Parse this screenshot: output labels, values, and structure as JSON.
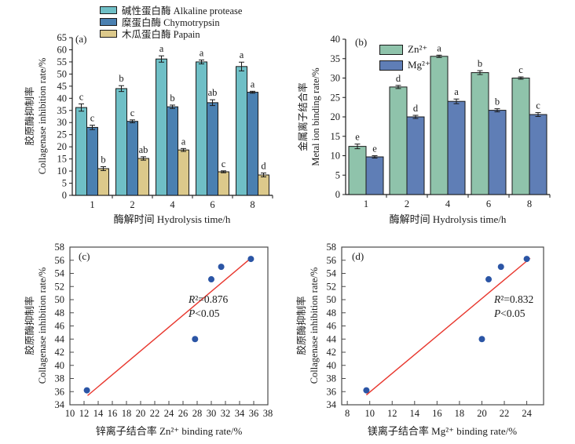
{
  "figure": {
    "panels": {
      "a": {
        "tag": "(a)",
        "ylabel_cn": "胶原酶抑制率",
        "ylabel_en": "Collagenase inhibition rate/%",
        "xlabel": "酶解时间 Hydrolysis time/h"
      },
      "b": {
        "tag": "(b)",
        "ylabel_cn": "金属离子结合率",
        "ylabel_en": "Metal ion binding rate/%",
        "xlabel": "酶解时间 Hydrolysis time/h"
      },
      "c": {
        "tag": "(c)",
        "ylabel_cn": "胶原酶抑制率",
        "ylabel_en": "Collagenase inhibition rate/%",
        "xlabel": "锌离子结合率 Zn²⁺ binding rate/%"
      },
      "d": {
        "tag": "(d)",
        "ylabel_cn": "胶原酶抑制率",
        "ylabel_en": "Collagenase inhibition rate/%",
        "xlabel": "镁离子结合率 Mg²⁺ binding rate/%"
      }
    },
    "colors": {
      "axis": "#1a1a1a",
      "scatter_box": "#4a4a4a"
    }
  },
  "chart_data": [
    {
      "type": "bar",
      "panel": "a",
      "title": "",
      "xlabel": "酶解时间 Hydrolysis time/h",
      "ylabel": "胶原酶抑制率 Collagenase inhibition rate/%",
      "categories": [
        "1",
        "2",
        "4",
        "6",
        "8"
      ],
      "ylim": [
        0,
        65
      ],
      "ytick_step": 5,
      "legend_position": "top-left-above",
      "series": [
        {
          "name": "碱性蛋白酶 Alkaline protease",
          "color": "#6fbfc6",
          "values": [
            36.2,
            44.0,
            56.2,
            55.0,
            53.1
          ],
          "errors": [
            1.5,
            1.2,
            1.3,
            0.8,
            1.8
          ],
          "sig_letters": [
            "c",
            "b",
            "a",
            "a",
            "a"
          ]
        },
        {
          "name": "糜蛋白酶 Chymotrypsin",
          "color": "#4a80b1",
          "values": [
            28.0,
            30.5,
            36.5,
            38.2,
            42.5
          ],
          "errors": [
            0.9,
            0.6,
            0.7,
            1.2,
            0.4
          ],
          "sig_letters": [
            "c",
            "c",
            "b",
            "ab",
            "a"
          ]
        },
        {
          "name": "木瓜蛋白酶 Papain",
          "color": "#dcc98b",
          "values": [
            11.0,
            15.2,
            18.7,
            9.7,
            8.4
          ],
          "errors": [
            0.8,
            0.7,
            0.6,
            0.4,
            0.8
          ],
          "sig_letters": [
            "b",
            "ab",
            "a",
            "c",
            "d"
          ]
        }
      ]
    },
    {
      "type": "bar",
      "panel": "b",
      "title": "",
      "xlabel": "酶解时间 Hydrolysis time/h",
      "ylabel": "金属离子结合率 Metal ion binding rate/%",
      "categories": [
        "1",
        "2",
        "4",
        "6",
        "8"
      ],
      "ylim": [
        0,
        40
      ],
      "ytick_step": 5,
      "legend_position": "inside-top-left",
      "series": [
        {
          "name": "Zn²⁺",
          "color": "#8fc3ab",
          "values": [
            12.4,
            27.7,
            35.6,
            31.4,
            30.0
          ],
          "errors": [
            0.6,
            0.4,
            0.3,
            0.5,
            0.3
          ],
          "sig_letters": [
            "e",
            "d",
            "a",
            "b",
            "c"
          ]
        },
        {
          "name": "Mg²⁺",
          "color": "#5f7eb6",
          "values": [
            9.7,
            20.0,
            24.0,
            21.7,
            20.6
          ],
          "errors": [
            0.3,
            0.4,
            0.6,
            0.4,
            0.5
          ],
          "sig_letters": [
            "e",
            "d",
            "a",
            "b",
            "c"
          ]
        }
      ]
    },
    {
      "type": "scatter",
      "panel": "c",
      "title": "",
      "xlabel": "锌离子结合率 Zn²⁺ binding rate/%",
      "ylabel": "胶原酶抑制率 Collagenase inhibition rate/%",
      "xlim": [
        10,
        38
      ],
      "xticks": {
        "min": 10,
        "max": 38,
        "step": 2
      },
      "ylim": [
        34,
        58
      ],
      "yticks": {
        "min": 34,
        "max": 58,
        "step": 2
      },
      "points": [
        [
          12.4,
          36.2
        ],
        [
          27.7,
          44.0
        ],
        [
          30.0,
          53.1
        ],
        [
          31.4,
          55.0
        ],
        [
          35.6,
          56.2
        ]
      ],
      "point_color": "#2b55a5",
      "fit_line": {
        "from": [
          12.5,
          35.4
        ],
        "to": [
          35.8,
          56.5
        ],
        "color": "#e8372e"
      },
      "annotation": [
        "R²=0.876",
        "P<0.05"
      ]
    },
    {
      "type": "scatter",
      "panel": "d",
      "title": "",
      "xlabel": "镁离子结合率 Mg²⁺ binding rate/%",
      "ylabel": "胶原酶抑制率 Collagenase inhibition rate/%",
      "xlim": [
        7.5,
        25.5
      ],
      "xticks": {
        "min": 8,
        "max": 24,
        "step": 2
      },
      "ylim": [
        34,
        58
      ],
      "yticks": {
        "min": 34,
        "max": 58,
        "step": 2
      },
      "points": [
        [
          9.7,
          36.2
        ],
        [
          20.0,
          44.0
        ],
        [
          20.6,
          53.1
        ],
        [
          21.7,
          55.0
        ],
        [
          24.0,
          56.2
        ]
      ],
      "point_color": "#2b55a5",
      "fit_line": {
        "from": [
          9.7,
          35.5
        ],
        "to": [
          24.3,
          56.3
        ],
        "color": "#e8372e"
      },
      "annotation": [
        "R²=0.832",
        "P<0.05"
      ]
    }
  ]
}
